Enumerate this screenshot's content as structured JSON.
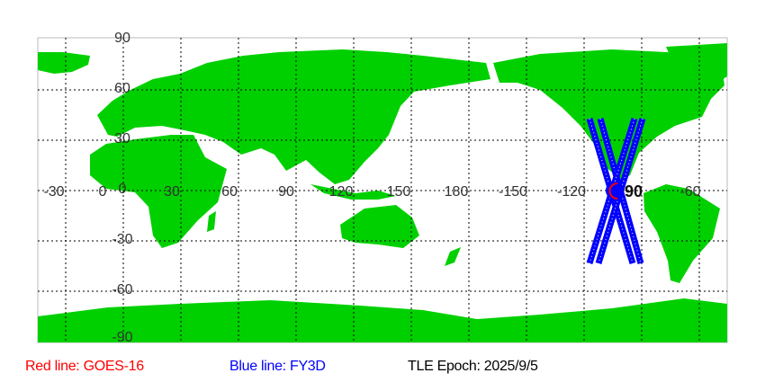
{
  "map": {
    "land_color": "#00d000",
    "track_colors": {
      "red": "#ff0000",
      "blue": "#0000ff"
    },
    "lon_labels": [
      "-30",
      "0",
      "30",
      "60",
      "90",
      "120",
      "150",
      "180",
      "-150",
      "-120",
      "-60"
    ],
    "lat_labels": [
      "90",
      "60",
      "30",
      "0",
      "-30",
      "-60",
      "-90"
    ],
    "track_label": "90"
  },
  "legend": {
    "red": "Red line: GOES-16",
    "blue": "Blue line: FY3D",
    "epoch": "TLE Epoch: 2025/9/5"
  }
}
